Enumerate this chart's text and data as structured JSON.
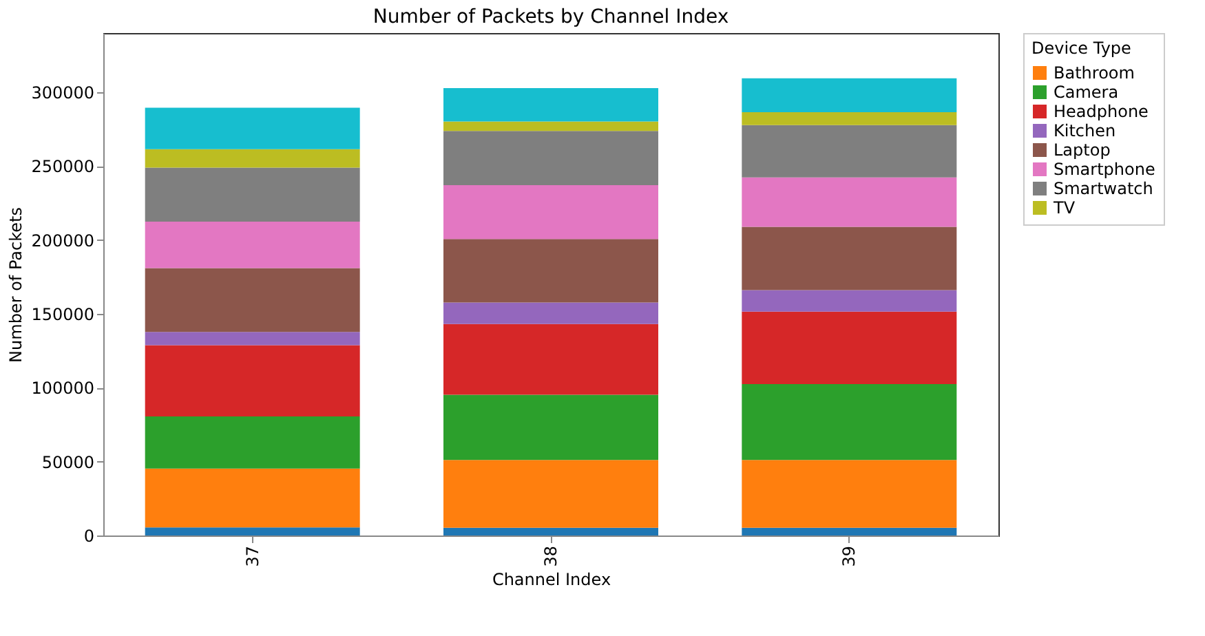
{
  "chart_data": {
    "type": "bar",
    "title": "Number of Packets by Channel Index",
    "xlabel": "Channel Index",
    "ylabel": "Number of Packets",
    "legend_title": "Device Type",
    "categories": [
      "37",
      "38",
      "39"
    ],
    "stacked": true,
    "ylim": [
      0,
      340000
    ],
    "yticks": [
      0,
      50000,
      100000,
      150000,
      200000,
      250000,
      300000
    ],
    "grid": false,
    "legend": "right",
    "series": [
      {
        "color": "#1f77b4",
        "values": [
          5500,
          5200,
          5200
        ]
      },
      {
        "name": "Bathroom",
        "color": "#ff7f0e",
        "values": [
          39800,
          45900,
          45900
        ]
      },
      {
        "name": "Camera",
        "color": "#2ca02c",
        "values": [
          35300,
          44100,
          51400
        ]
      },
      {
        "name": "Headphone",
        "color": "#d62728",
        "values": [
          48200,
          47900,
          49000
        ]
      },
      {
        "name": "Kitchen",
        "color": "#9467bd",
        "values": [
          9000,
          14500,
          14500
        ]
      },
      {
        "name": "Laptop",
        "color": "#8c564b",
        "values": [
          43200,
          43000,
          42900
        ]
      },
      {
        "name": "Smartphone",
        "color": "#e377c2",
        "values": [
          31400,
          36500,
          33400
        ]
      },
      {
        "name": "Smartwatch",
        "color": "#7f7f7f",
        "values": [
          36500,
          36600,
          35400
        ]
      },
      {
        "name": "TV",
        "color": "#bcbd22",
        "values": [
          12500,
          6400,
          8700
        ]
      },
      {
        "color": "#17becf",
        "values": [
          28100,
          22600,
          23000
        ]
      }
    ]
  }
}
